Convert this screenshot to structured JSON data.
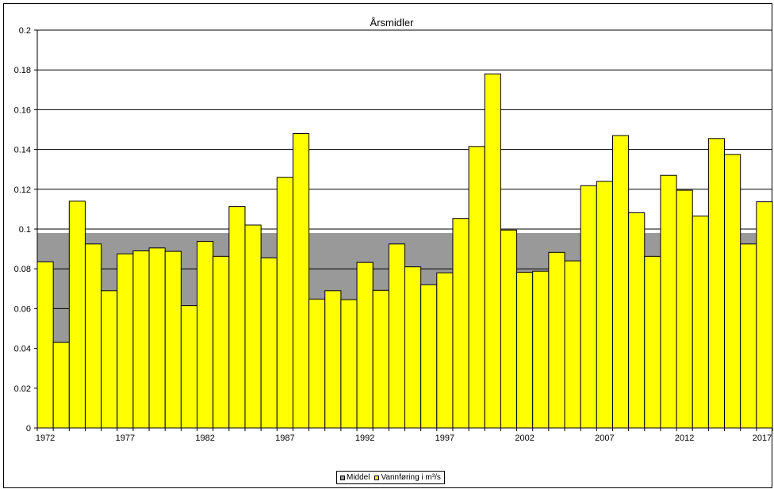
{
  "chart_data": {
    "type": "bar",
    "title": "Årsmidler",
    "xlabel": "",
    "ylabel": "",
    "ylim": [
      0,
      0.2
    ],
    "yticks": [
      "0",
      "0.02",
      "0.04",
      "0.06",
      "0.08",
      "0.1",
      "0.12",
      "0.14",
      "0.16",
      "0.18",
      "0.2"
    ],
    "xtick_labels": [
      "1972",
      "1977",
      "1982",
      "1987",
      "1992",
      "1997",
      "2002",
      "2007",
      "2012",
      "2017"
    ],
    "categories": [
      1972,
      1973,
      1974,
      1975,
      1976,
      1977,
      1978,
      1979,
      1980,
      1981,
      1982,
      1983,
      1984,
      1985,
      1986,
      1987,
      1988,
      1989,
      1990,
      1991,
      1992,
      1993,
      1994,
      1995,
      1996,
      1997,
      1998,
      1999,
      2000,
      2001,
      2002,
      2003,
      2004,
      2005,
      2006,
      2007,
      2008,
      2009,
      2010,
      2011,
      2012,
      2013,
      2014,
      2015,
      2016,
      2017
    ],
    "series": [
      {
        "name": "Vannføring i m³/s",
        "color": "#ffff00",
        "values": [
          0.0835,
          0.043,
          0.114,
          0.0925,
          0.069,
          0.0875,
          0.089,
          0.0905,
          0.0888,
          0.0615,
          0.0938,
          0.0863,
          0.1113,
          0.102,
          0.0855,
          0.126,
          0.148,
          0.0648,
          0.069,
          0.0645,
          0.0832,
          0.0692,
          0.0925,
          0.081,
          0.072,
          0.078,
          0.1053,
          0.1415,
          0.178,
          0.0995,
          0.0783,
          0.0788,
          0.0883,
          0.084,
          0.1218,
          0.124,
          0.147,
          0.1082,
          0.0863,
          0.127,
          0.1195,
          0.1065,
          0.1455,
          0.1375,
          0.0925,
          0.1137
        ]
      },
      {
        "name": "Middel",
        "color": "#999999",
        "value": 0.098
      }
    ],
    "grid": true,
    "legend_position": "bottom-center"
  }
}
